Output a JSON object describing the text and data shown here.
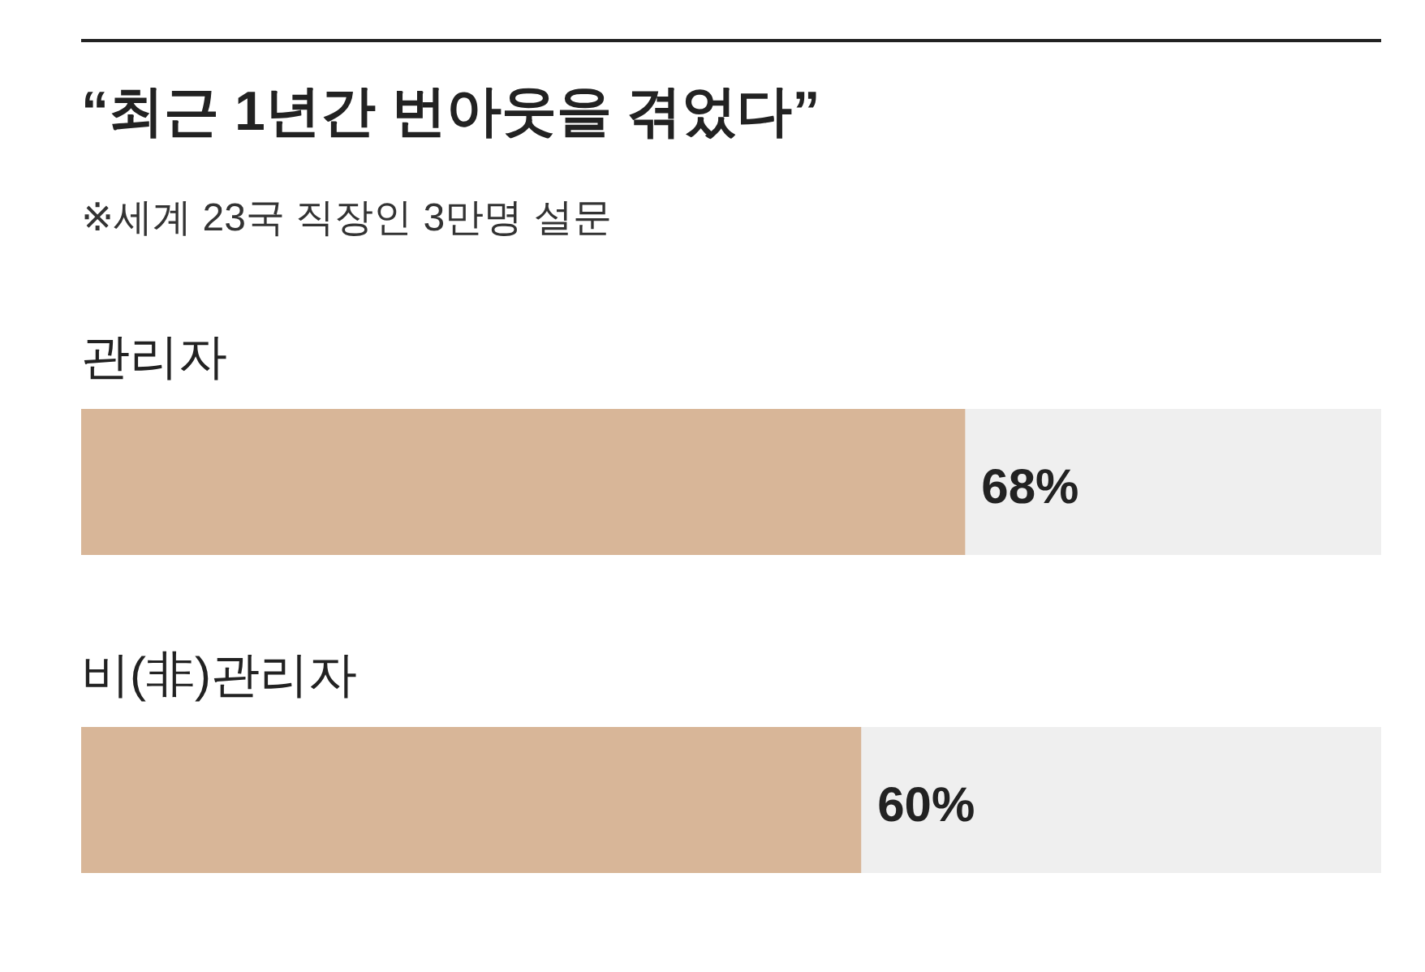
{
  "chart_data": {
    "type": "bar",
    "orientation": "horizontal",
    "title": "“최근 1년간 번아웃을 겪었다”",
    "subtitle": "※세계 23국 직장인 3만명 설문",
    "categories": [
      "관리자",
      "비(非)관리자"
    ],
    "values": [
      68,
      60
    ],
    "value_labels": [
      "68%",
      "60%"
    ],
    "color": "#d8b698"
  }
}
